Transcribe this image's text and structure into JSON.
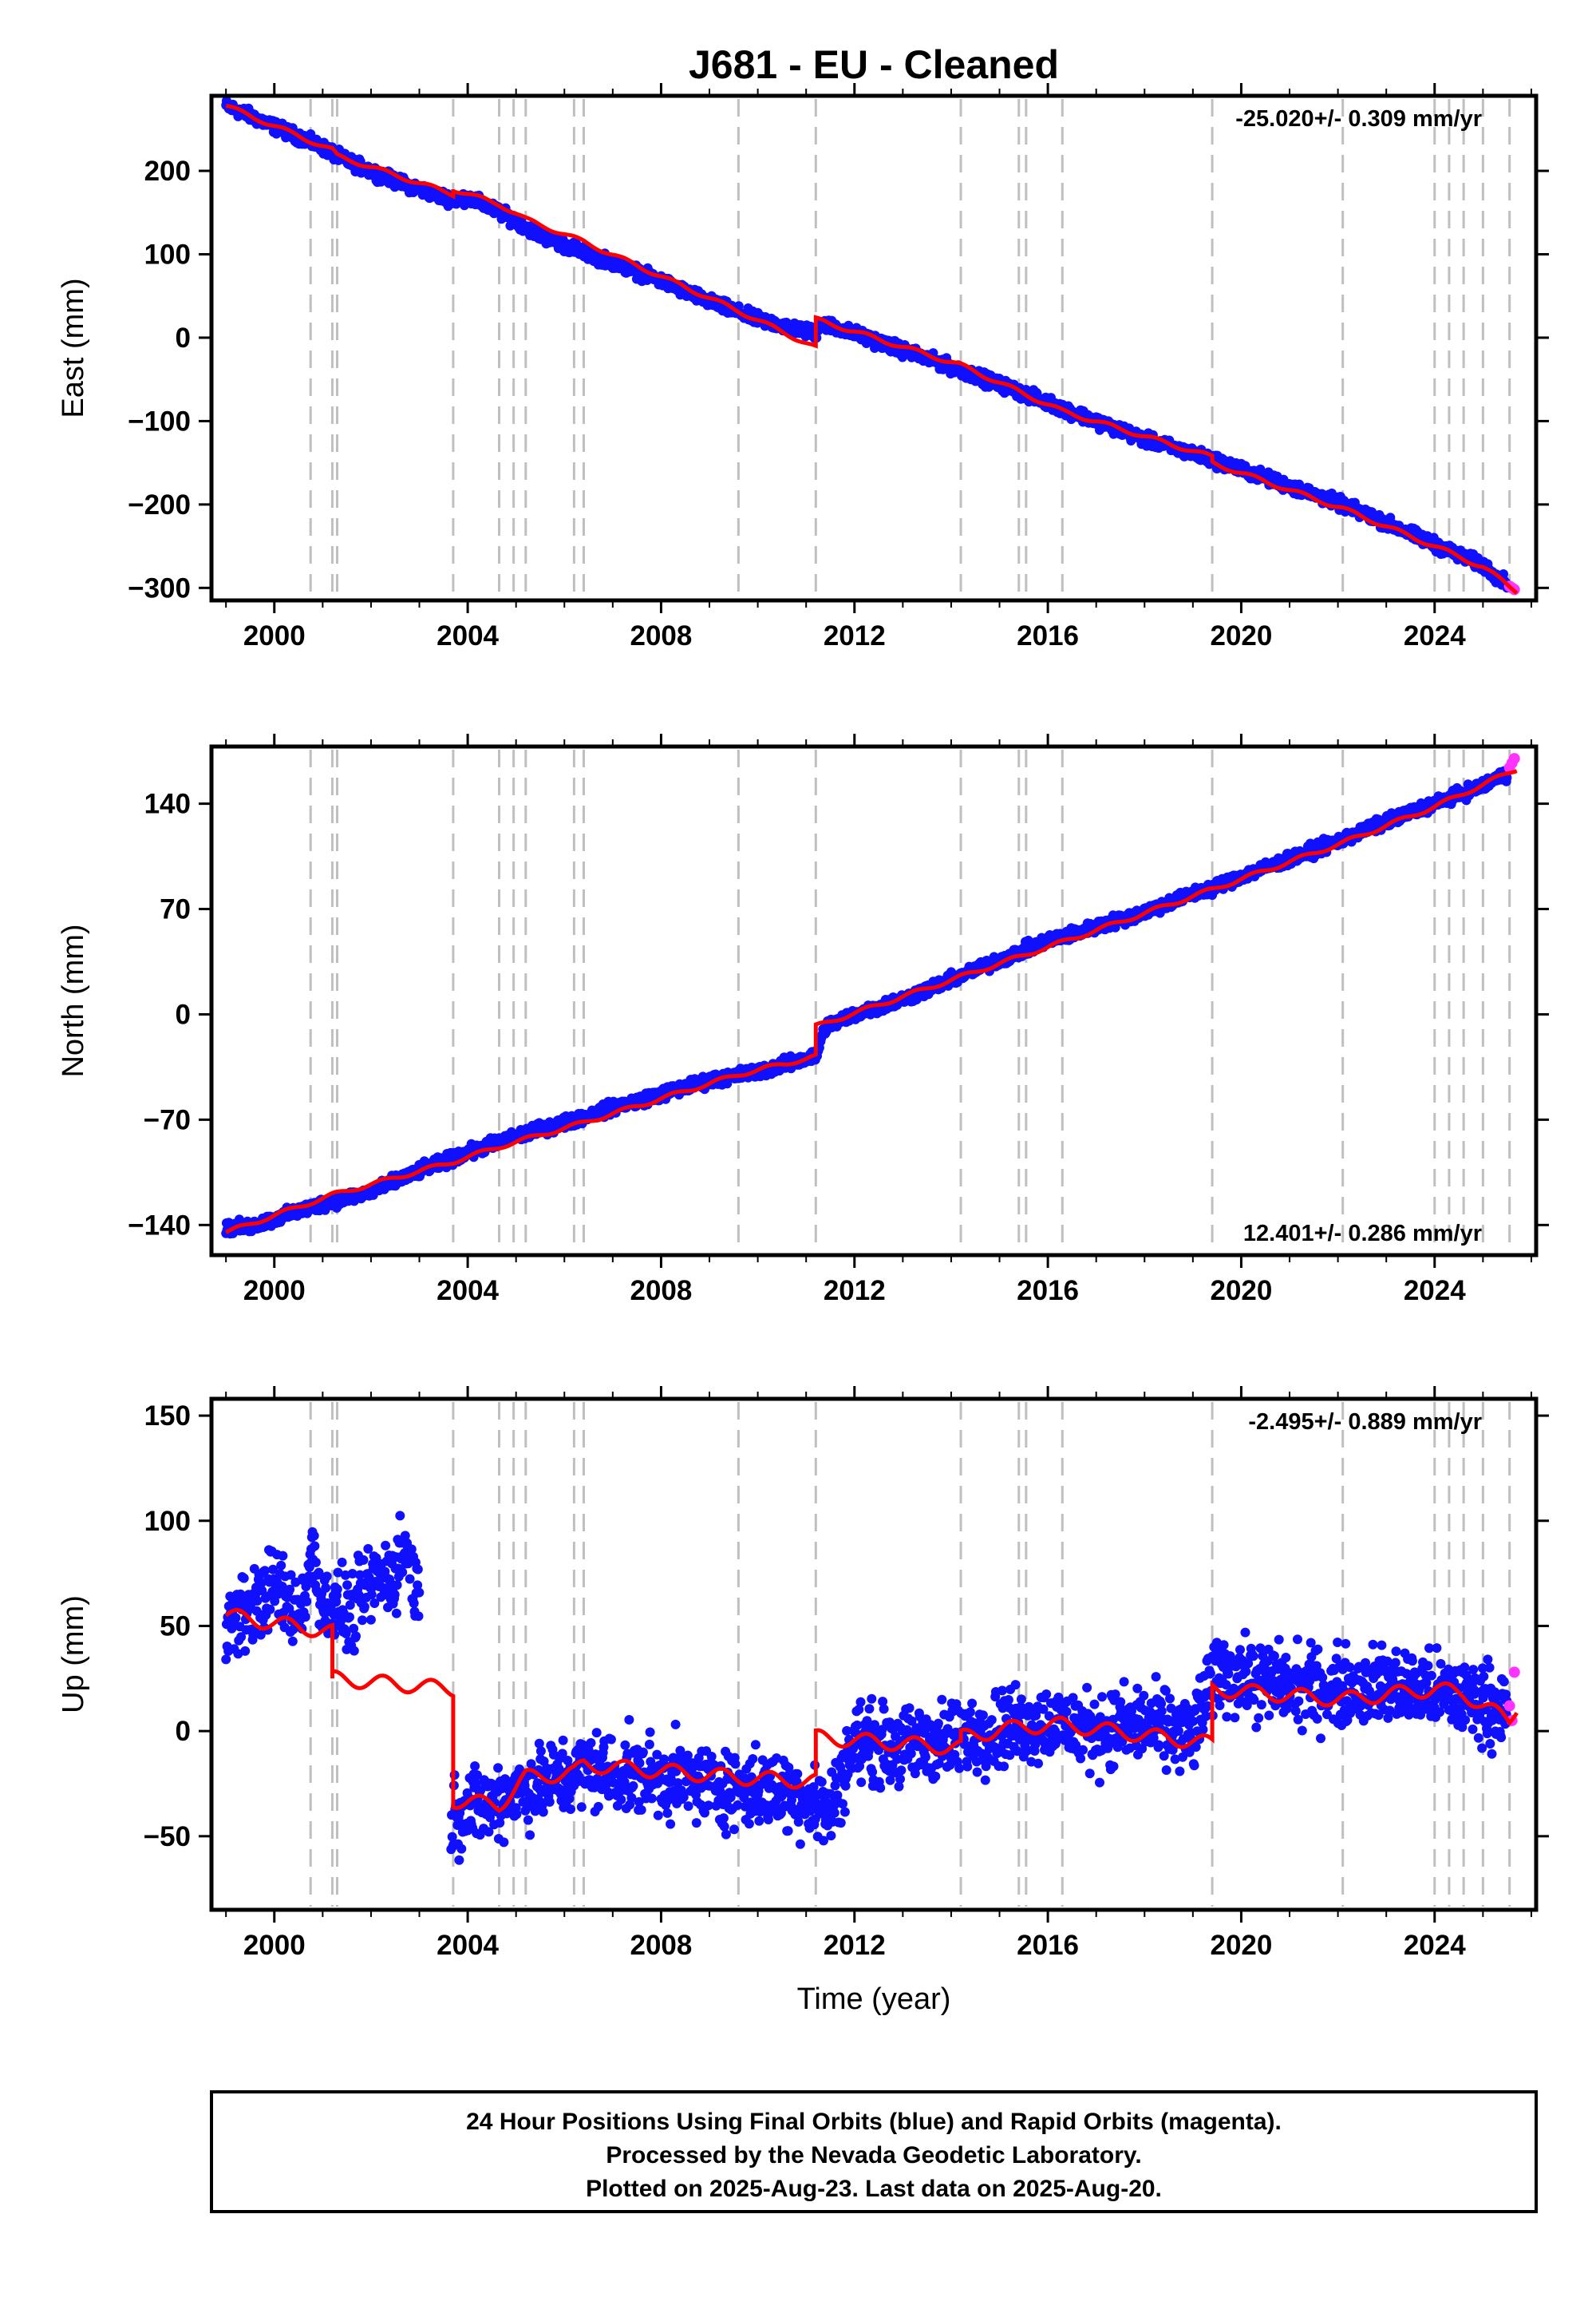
{
  "title": "J681  - EU - Cleaned",
  "xlabel": "Time (year)",
  "footer": {
    "line1": "24 Hour Positions Using Final Orbits (blue) and Rapid Orbits (magenta).",
    "line2": "Processed by the Nevada Geodetic Laboratory.",
    "line3": "Plotted on 2025-Aug-23. Last data on 2025-Aug-20."
  },
  "colors": {
    "final": "#1010ff",
    "rapid": "#ff33ff",
    "model": "#ff0000",
    "event": "#bfbfbf",
    "frame": "#000000"
  },
  "chart_data": [
    {
      "type": "scatter",
      "ylabel": "East (mm)",
      "rate": "-25.020+/- 0.309 mm/yr",
      "xlim": [
        1998.7,
        2026.1
      ],
      "ylim": [
        -315,
        290
      ],
      "xticks": [
        2000,
        2004,
        2008,
        2012,
        2016,
        2020,
        2024
      ],
      "yticks": [
        200,
        100,
        0,
        -100,
        -200,
        -300
      ],
      "ytick_labels": [
        "200",
        "100",
        "0",
        "−100",
        "−200",
        "−300"
      ],
      "events": [
        2000.75,
        2001.2,
        2001.3,
        2003.7,
        2004.65,
        2004.95,
        2005.2,
        2006.2,
        2006.4,
        2009.6,
        2011.2,
        2014.2,
        2015.4,
        2015.55,
        2016.3,
        2019.4,
        2022.1,
        2024.0,
        2024.3,
        2024.6,
        2025.0,
        2025.55
      ],
      "series": [
        {
          "kind": "final",
          "x": [
            1999.0,
            1999.5,
            2000.0,
            2000.5,
            2001.0,
            2001.5,
            2002.0,
            2002.5,
            2003.0,
            2003.7,
            2004.0,
            2004.5,
            2005.0,
            2005.5,
            2006.0,
            2007.0,
            2008.0,
            2009.0,
            2010.0,
            2011.2,
            2011.3,
            2012.0,
            2013.0,
            2014.0,
            2015.0,
            2016.0,
            2017.0,
            2018.0,
            2019.4,
            2020.0,
            2021.0,
            2022.0,
            2023.0,
            2024.0,
            2025.0,
            2025.5
          ],
          "y": [
            278,
            266,
            253,
            241,
            228,
            212,
            200,
            188,
            178,
            165,
            168,
            155,
            140,
            123,
            111,
            90,
            68,
            43,
            22,
            5,
            18,
            5,
            -15,
            -35,
            -56,
            -78,
            -100,
            -122,
            -146,
            -158,
            -178,
            -198,
            -222,
            -248,
            -273,
            -295
          ]
        },
        {
          "kind": "rapid",
          "x": [
            2025.55,
            2025.6,
            2025.65
          ],
          "y": [
            -298,
            -300,
            -302
          ]
        },
        {
          "kind": "model",
          "x": [
            1999.0,
            2001.2,
            2001.3,
            2003.7,
            2003.7,
            2004.65,
            2005.2,
            2006.4,
            2009.6,
            2011.2,
            2011.2,
            2014.2,
            2016.3,
            2019.4,
            2019.4,
            2022.1,
            2024.0,
            2025.0,
            2025.7
          ],
          "y": [
            278,
            225,
            218,
            172,
            178,
            160,
            142,
            115,
            32,
            -12,
            22,
            -33,
            -88,
            -143,
            -150,
            -205,
            -250,
            -275,
            -304
          ]
        }
      ]
    },
    {
      "type": "scatter",
      "ylabel": "North (mm)",
      "rate": "12.401+/- 0.286 mm/yr",
      "xlim": [
        1998.7,
        2026.1
      ],
      "ylim": [
        -160,
        178
      ],
      "xticks": [
        2000,
        2004,
        2008,
        2012,
        2016,
        2020,
        2024
      ],
      "yticks": [
        140,
        70,
        0,
        -70,
        -140
      ],
      "ytick_labels": [
        "140",
        "70",
        "0",
        "−70",
        "−140"
      ],
      "events": [
        2000.75,
        2001.2,
        2001.3,
        2003.7,
        2004.65,
        2004.95,
        2005.2,
        2006.2,
        2006.4,
        2009.6,
        2011.2,
        2014.2,
        2015.4,
        2015.55,
        2016.3,
        2019.4,
        2022.1,
        2024.0,
        2024.3,
        2024.6,
        2025.0,
        2025.55
      ],
      "series": [
        {
          "kind": "final",
          "x": [
            1999.0,
            1999.5,
            2000.0,
            2000.5,
            2001.0,
            2001.5,
            2002.0,
            2003.0,
            2004.0,
            2005.0,
            2006.0,
            2007.0,
            2008.0,
            2009.0,
            2010.0,
            2011.2,
            2011.4,
            2012.0,
            2013.0,
            2014.0,
            2015.0,
            2016.0,
            2017.0,
            2018.0,
            2019.0,
            2019.5,
            2020.0,
            2021.0,
            2022.0,
            2023.0,
            2024.0,
            2025.0,
            2025.5
          ],
          "y": [
            -142,
            -141,
            -136,
            -131,
            -126,
            -122,
            -118,
            -104,
            -92,
            -81,
            -72,
            -62,
            -53,
            -44,
            -38,
            -28,
            -8,
            0,
            10,
            23,
            36,
            49,
            58,
            68,
            80,
            85,
            92,
            103,
            115,
            128,
            140,
            152,
            160
          ]
        },
        {
          "kind": "rapid",
          "x": [
            2025.55,
            2025.6,
            2025.65
          ],
          "y": [
            164,
            167,
            170
          ]
        },
        {
          "kind": "model",
          "x": [
            1999.0,
            2001.2,
            2003.7,
            2004.65,
            2006.4,
            2009.6,
            2011.2,
            2011.2,
            2014.2,
            2016.3,
            2019.4,
            2022.1,
            2024.0,
            2025.7
          ],
          "y": [
            -145,
            -120,
            -98,
            -88,
            -72,
            -40,
            -28,
            -8,
            25,
            48,
            83,
            114,
            138,
            163
          ]
        }
      ]
    },
    {
      "type": "scatter",
      "ylabel": "Up (mm)",
      "rate": "-2.495+/- 0.889 mm/yr",
      "xlabel": "Time (year)",
      "xlim": [
        1998.7,
        2026.1
      ],
      "ylim": [
        -85,
        158
      ],
      "xticks": [
        2000,
        2004,
        2008,
        2012,
        2016,
        2020,
        2024
      ],
      "yticks": [
        150,
        100,
        50,
        0,
        -50
      ],
      "ytick_labels": [
        "150",
        "100",
        "50",
        "0",
        "−50"
      ],
      "events": [
        2000.75,
        2001.2,
        2001.3,
        2003.7,
        2004.65,
        2004.95,
        2005.2,
        2006.2,
        2006.4,
        2009.6,
        2011.2,
        2014.2,
        2015.4,
        2015.55,
        2016.3,
        2019.4,
        2022.1,
        2024.0,
        2024.3,
        2024.6,
        2025.0,
        2025.55
      ],
      "series": [
        {
          "kind": "final",
          "x": [
            1999.0,
            1999.5,
            2000.0,
            2000.5,
            2000.8,
            2001.0,
            2001.3,
            2001.6,
            2002.0,
            2002.5,
            2002.7,
            2003.0,
            2003.3,
            2003.6,
            2003.9,
            2004.3,
            2004.8,
            2005.5,
            2006.0,
            2006.5,
            2007.0,
            2008.0,
            2009.0,
            2010.0,
            2010.8,
            2011.2,
            2011.5,
            2012.0,
            2013.0,
            2014.0,
            2015.0,
            2016.0,
            2017.0,
            2018.0,
            2019.0,
            2019.5,
            2020.0,
            2021.0,
            2022.0,
            2023.0,
            2024.0,
            2025.0,
            2025.5
          ],
          "y": [
            50,
            58,
            70,
            55,
            85,
            60,
            58,
            55,
            70,
            75,
            90,
            62,
            60,
            -40,
            -38,
            -35,
            -30,
            -25,
            -22,
            -18,
            -20,
            -22,
            -25,
            -28,
            -30,
            -35,
            -38,
            -5,
            -8,
            -4,
            2,
            4,
            0,
            3,
            -2,
            30,
            25,
            22,
            20,
            22,
            18,
            15,
            8
          ]
        },
        {
          "kind": "rapid",
          "x": [
            2025.55,
            2025.6,
            2025.65
          ],
          "y": [
            12,
            5,
            28
          ]
        },
        {
          "kind": "model",
          "x": [
            1999.0,
            2001.2,
            2001.2,
            2003.7,
            2003.7,
            2004.65,
            2004.95,
            2005.2,
            2006.2,
            2006.4,
            2009.6,
            2011.2,
            2011.2,
            2014.2,
            2014.2,
            2015.4,
            2016.3,
            2019.4,
            2019.4,
            2022.1,
            2024.0,
            2024.6,
            2025.0,
            2025.55,
            2025.7
          ],
          "y": [
            55,
            47,
            25,
            20,
            -33,
            -35,
            -28,
            -22,
            -20,
            -16,
            -22,
            -24,
            -3,
            -8,
            -3,
            2,
            3,
            -6,
            20,
            15,
            20,
            18,
            12,
            5,
            12
          ]
        }
      ]
    }
  ]
}
